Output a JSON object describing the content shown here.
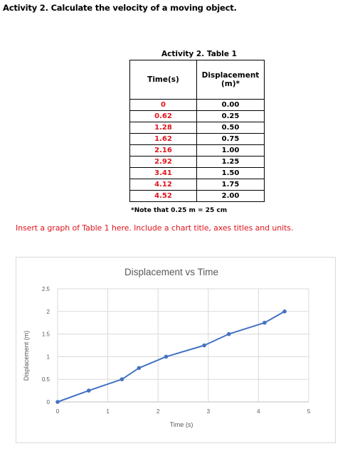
{
  "heading": "Activity 2.  Calculate the velocity of a moving object.",
  "table": {
    "caption": "Activity 2. Table 1",
    "col_time": "Time(s)",
    "col_disp": "Displacement (m)*",
    "rows": [
      {
        "time": "0",
        "disp": "0.00"
      },
      {
        "time": "0.62",
        "disp": "0.25"
      },
      {
        "time": "1.28",
        "disp": "0.50"
      },
      {
        "time": "1.62",
        "disp": "0.75"
      },
      {
        "time": "2.16",
        "disp": "1.00"
      },
      {
        "time": "2.92",
        "disp": "1.25"
      },
      {
        "time": "3.41",
        "disp": "1.50"
      },
      {
        "time": "4.12",
        "disp": "1.75"
      },
      {
        "time": "4.52",
        "disp": "2.00"
      }
    ],
    "note": "*Note that 0.25 m = 25 cm"
  },
  "instruction": "Insert a graph of Table 1 here.  Include a chart title, axes titles and units.",
  "colors": {
    "time_text": "#e0141c",
    "series": "#4472c4"
  },
  "chart_data": {
    "type": "line",
    "title": "Displacement vs Time",
    "xlabel": "Time (s)",
    "ylabel": "Displacement (m)",
    "xlim": [
      0,
      5
    ],
    "ylim": [
      0,
      2.5
    ],
    "x_ticks": [
      "0",
      "1",
      "2",
      "3",
      "4",
      "5"
    ],
    "y_ticks": [
      "0",
      "0.5",
      "1",
      "1.5",
      "2",
      "2.5"
    ],
    "grid": true,
    "series": [
      {
        "x": [
          0,
          0.62,
          1.28,
          1.62,
          2.16,
          2.92,
          3.41,
          4.12,
          4.52
        ],
        "y": [
          0,
          0.25,
          0.5,
          0.75,
          1.0,
          1.25,
          1.5,
          1.75,
          2.0
        ]
      }
    ]
  }
}
